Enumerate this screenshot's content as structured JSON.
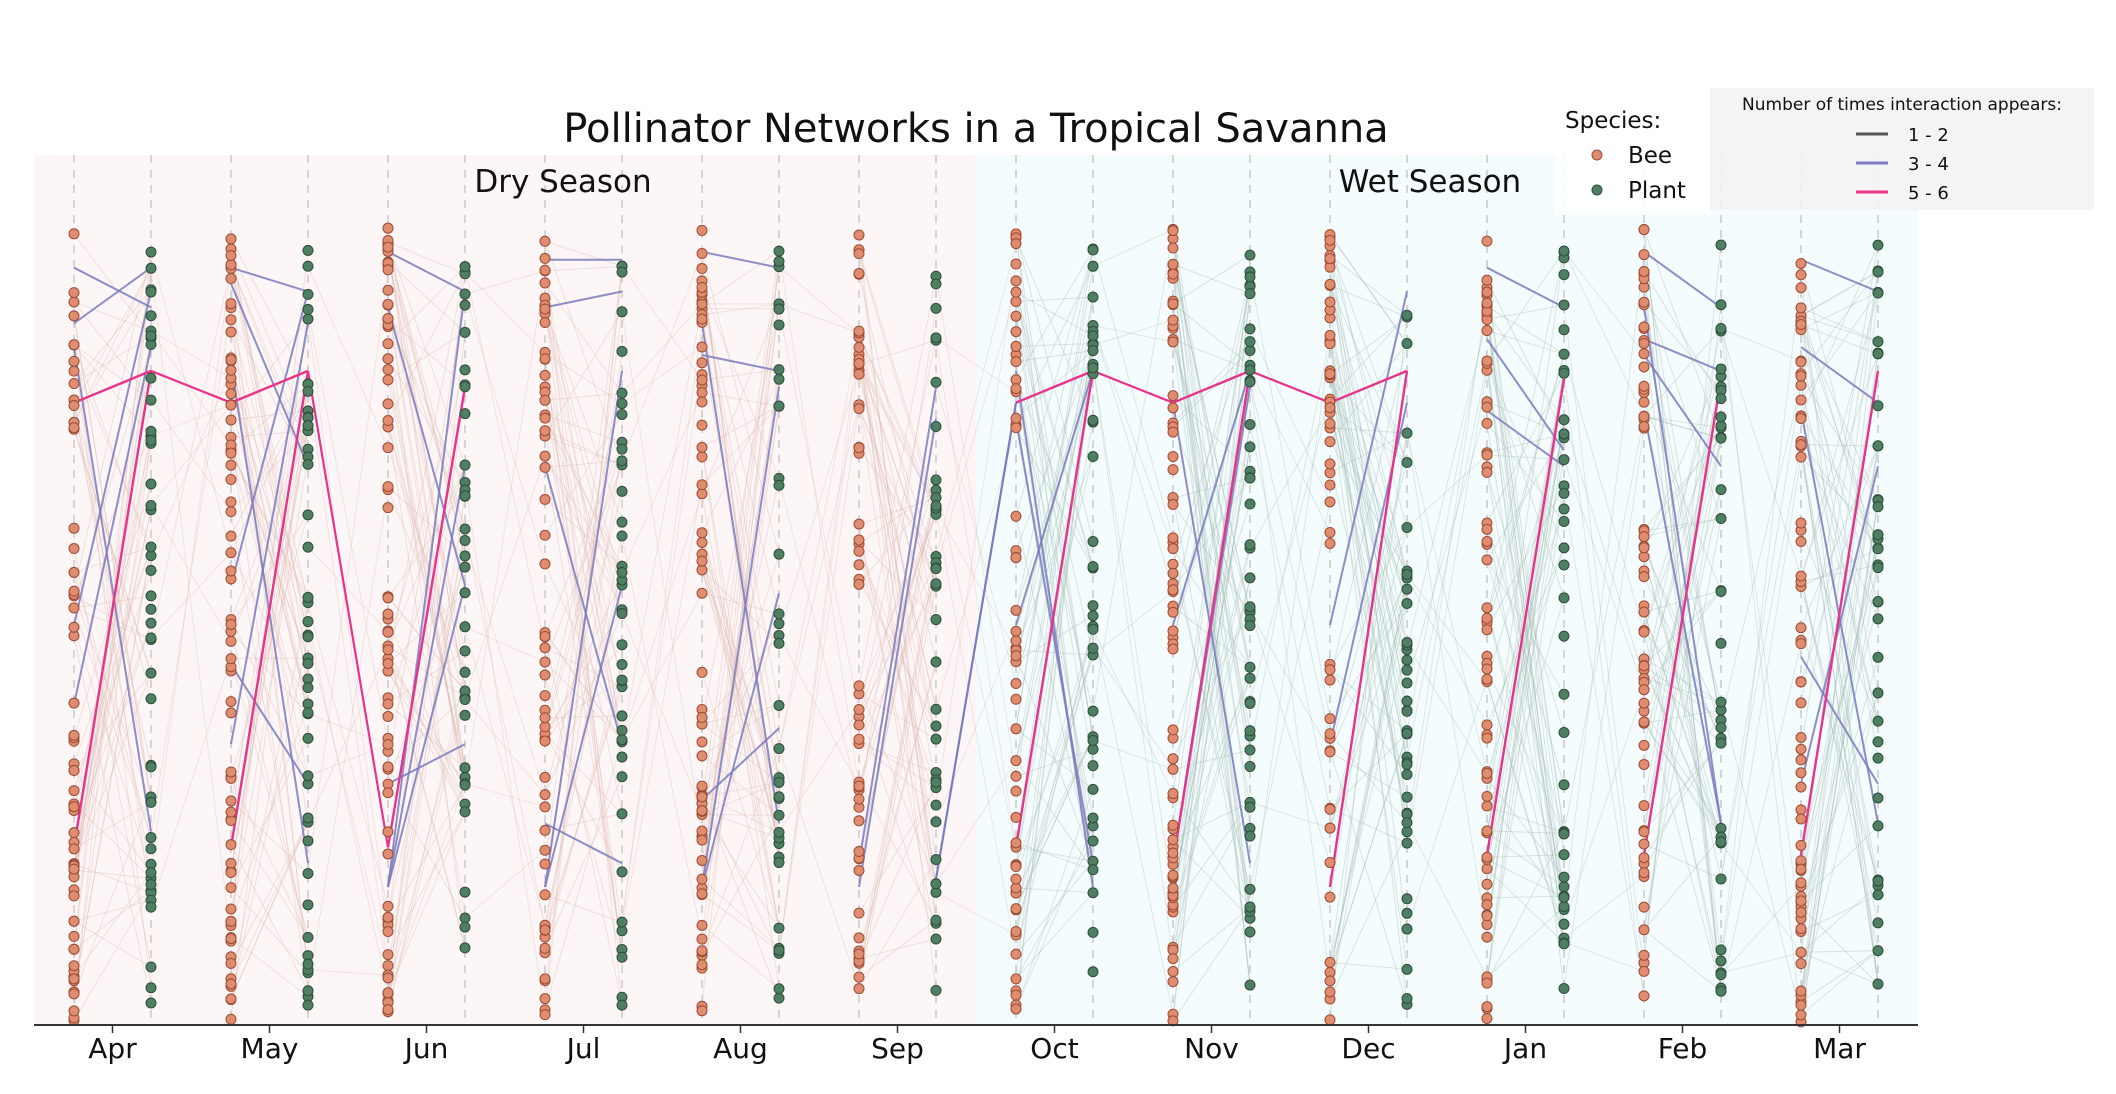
{
  "chart_data": {
    "type": "line",
    "title": "Pollinator Networks in a Tropical Savanna",
    "x_ticks": [
      "Apr",
      "May",
      "Jun",
      "Jul",
      "Aug",
      "Sep",
      "Oct",
      "Nov",
      "Dec",
      "Jan",
      "Feb",
      "Mar"
    ],
    "y_range": [
      0,
      1
    ],
    "grid": "vertical dashed lines at bee and plant columns",
    "seasons": [
      {
        "label": "Dry Season",
        "start_month": "Apr",
        "end_month": "Sep",
        "color": "#fdf6f6"
      },
      {
        "label": "Wet Season",
        "start_month": "Oct",
        "end_month": "Mar",
        "color": "#f5fcfd"
      }
    ],
    "species_legend": {
      "title": "Species:",
      "placement": "top-right",
      "entries": [
        {
          "label": "Bee",
          "color": "#e08c6e"
        },
        {
          "label": "Plant",
          "color": "#4f7f63"
        }
      ]
    },
    "interaction_legend": {
      "title": "Number of times interaction appears:",
      "placement": "top-right",
      "entries": [
        {
          "label": "1 - 2",
          "color": "#555555"
        },
        {
          "label": "3 - 4",
          "color": "#7b7bbf"
        },
        {
          "label": "5 - 6",
          "color": "#e8338a"
        }
      ]
    },
    "strong_interactions": [
      {
        "month": "Apr",
        "bee": 0.78,
        "plant": 0.82,
        "count": "5 - 6"
      },
      {
        "month": "Apr",
        "bee": 0.22,
        "plant": 0.82,
        "count": "5 - 6"
      },
      {
        "month": "May",
        "bee": 0.78,
        "plant": 0.82,
        "count": "5 - 6"
      },
      {
        "month": "May",
        "bee": 0.22,
        "plant": 0.82,
        "count": "5 - 6"
      },
      {
        "month": "Jun",
        "bee": 0.22,
        "plant": 0.8,
        "count": "5 - 6"
      },
      {
        "month": "Oct",
        "bee": 0.78,
        "plant": 0.82,
        "count": "5 - 6"
      },
      {
        "month": "Oct",
        "bee": 0.22,
        "plant": 0.82,
        "count": "5 - 6"
      },
      {
        "month": "Nov",
        "bee": 0.78,
        "plant": 0.82,
        "count": "5 - 6"
      },
      {
        "month": "Nov",
        "bee": 0.2,
        "plant": 0.82,
        "count": "5 - 6"
      },
      {
        "month": "Dec",
        "bee": 0.78,
        "plant": 0.82,
        "count": "5 - 6"
      },
      {
        "month": "Dec",
        "bee": 0.17,
        "plant": 0.82,
        "count": "5 - 6"
      },
      {
        "month": "Jan",
        "bee": 0.21,
        "plant": 0.81,
        "count": "5 - 6"
      },
      {
        "month": "Feb",
        "bee": 0.21,
        "plant": 0.81,
        "count": "5 - 6"
      },
      {
        "month": "Mar",
        "bee": 0.21,
        "plant": 0.82,
        "count": "5 - 6"
      }
    ],
    "medium_interactions": [
      {
        "month": "Apr",
        "bee": 0.95,
        "plant": 0.9
      },
      {
        "month": "Apr",
        "bee": 0.88,
        "plant": 0.95
      },
      {
        "month": "Apr",
        "bee": 0.5,
        "plant": 0.92
      },
      {
        "month": "Apr",
        "bee": 0.4,
        "plant": 0.85
      },
      {
        "month": "Apr",
        "bee": 0.85,
        "plant": 0.24
      },
      {
        "month": "May",
        "bee": 0.95,
        "plant": 0.92
      },
      {
        "month": "May",
        "bee": 0.55,
        "plant": 0.92
      },
      {
        "month": "May",
        "bee": 0.45,
        "plant": 0.3
      },
      {
        "month": "May",
        "bee": 0.93,
        "plant": 0.7
      },
      {
        "month": "May",
        "bee": 0.83,
        "plant": 0.2
      },
      {
        "month": "May",
        "bee": 0.35,
        "plant": 0.88
      },
      {
        "month": "Jun",
        "bee": 0.97,
        "plant": 0.92
      },
      {
        "month": "Jun",
        "bee": 0.17,
        "plant": 0.92
      },
      {
        "month": "Jun",
        "bee": 0.17,
        "plant": 0.55
      },
      {
        "month": "Jun",
        "bee": 0.9,
        "plant": 0.55
      },
      {
        "month": "Jun",
        "bee": 0.3,
        "plant": 0.35
      },
      {
        "month": "Jun",
        "bee": 0.17,
        "plant": 0.7
      },
      {
        "month": "Jul",
        "bee": 0.96,
        "plant": 0.96
      },
      {
        "month": "Jul",
        "bee": 0.17,
        "plant": 0.55
      },
      {
        "month": "Jul",
        "bee": 0.9,
        "plant": 0.92
      },
      {
        "month": "Jul",
        "bee": 0.17,
        "plant": 0.82
      },
      {
        "month": "Jul",
        "bee": 0.7,
        "plant": 0.35
      },
      {
        "month": "Jul",
        "bee": 0.25,
        "plant": 0.2
      },
      {
        "month": "Aug",
        "bee": 0.97,
        "plant": 0.95
      },
      {
        "month": "Aug",
        "bee": 0.17,
        "plant": 0.54
      },
      {
        "month": "Aug",
        "bee": 0.84,
        "plant": 0.82
      },
      {
        "month": "Aug",
        "bee": 0.17,
        "plant": 0.8
      },
      {
        "month": "Aug",
        "bee": 0.28,
        "plant": 0.37
      },
      {
        "month": "Aug",
        "bee": 0.88,
        "plant": 0.25
      },
      {
        "month": "Sep",
        "bee": 0.17,
        "plant": 0.76
      },
      {
        "month": "Sep",
        "bee": 0.2,
        "plant": 0.8
      },
      {
        "month": "Oct",
        "bee": 0.76,
        "plant": 0.2
      },
      {
        "month": "Oct",
        "bee": 0.5,
        "plant": 0.82
      },
      {
        "month": "Oct",
        "bee": 0.82,
        "plant": 0.17
      },
      {
        "month": "Nov",
        "bee": 0.78,
        "plant": 0.2
      },
      {
        "month": "Nov",
        "bee": 0.2,
        "plant": 0.8
      },
      {
        "month": "Nov",
        "bee": 0.5,
        "plant": 0.82
      },
      {
        "month": "Dec",
        "bee": 0.5,
        "plant": 0.92
      },
      {
        "month": "Dec",
        "bee": 0.35,
        "plant": 0.78
      },
      {
        "month": "Jan",
        "bee": 0.95,
        "plant": 0.9
      },
      {
        "month": "Jan",
        "bee": 0.77,
        "plant": 0.7
      },
      {
        "month": "Jan",
        "bee": 0.86,
        "plant": 0.72
      },
      {
        "month": "Feb",
        "bee": 0.97,
        "plant": 0.9
      },
      {
        "month": "Feb",
        "bee": 0.84,
        "plant": 0.7
      },
      {
        "month": "Feb",
        "bee": 0.77,
        "plant": 0.25
      },
      {
        "month": "Feb",
        "bee": 0.9,
        "plant": 0.25
      },
      {
        "month": "Feb",
        "bee": 0.86,
        "plant": 0.82
      },
      {
        "month": "Mar",
        "bee": 0.96,
        "plant": 0.92
      },
      {
        "month": "Mar",
        "bee": 0.46,
        "plant": 0.3
      },
      {
        "month": "Mar",
        "bee": 0.77,
        "plant": 0.25
      },
      {
        "month": "Mar",
        "bee": 0.3,
        "plant": 0.7
      },
      {
        "month": "Mar",
        "bee": 0.85,
        "plant": 0.78
      }
    ],
    "cross_links": [
      {
        "from": "Apr",
        "from_plant": 0.82,
        "to": "May",
        "to_bee": 0.78
      },
      {
        "from": "May",
        "from_plant": 0.82,
        "to": "Jun",
        "to_bee": 0.22
      },
      {
        "from": "Oct",
        "from_plant": 0.82,
        "to": "Nov",
        "to_bee": 0.78
      },
      {
        "from": "Nov",
        "from_plant": 0.82,
        "to": "Dec",
        "to_bee": 0.78
      },
      {
        "from": "Sep",
        "from_plant": 0.18,
        "to": "Oct",
        "to_bee": 0.78
      }
    ]
  }
}
